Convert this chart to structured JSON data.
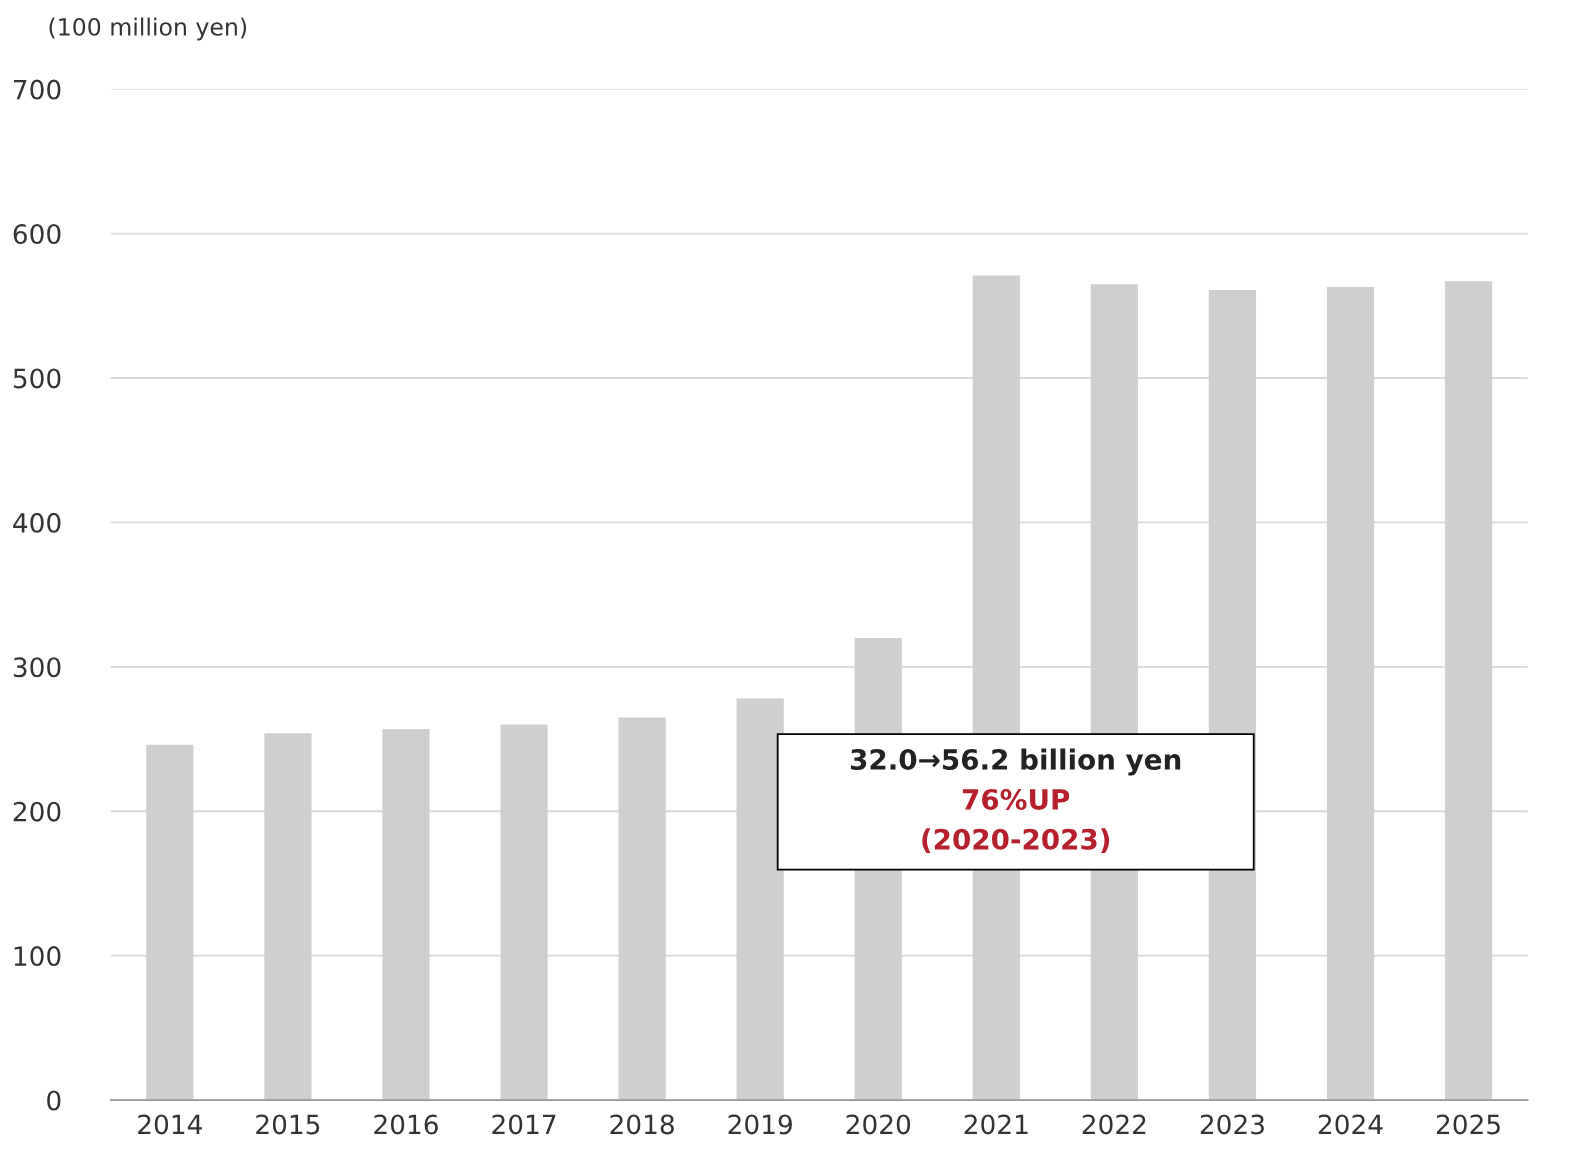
{
  "chart_data": {
    "type": "bar",
    "ylabel": "(100 million yen)",
    "categories": [
      "2014",
      "2015",
      "2016",
      "2017",
      "2018",
      "2019",
      "2020",
      "2021",
      "2022",
      "2023",
      "2024",
      "2025"
    ],
    "values": [
      246,
      254,
      257,
      260,
      265,
      278,
      320,
      571,
      565,
      561,
      563,
      567
    ],
    "color": "#d0cfd0",
    "ylim": [
      0,
      700
    ],
    "yticks": [
      0,
      100,
      200,
      300,
      400,
      500,
      600,
      700
    ],
    "grid": "y",
    "legend": false,
    "annotations": [
      "32.0→56.2 billion yen",
      "76%UP",
      "(2020-2023)"
    ]
  }
}
